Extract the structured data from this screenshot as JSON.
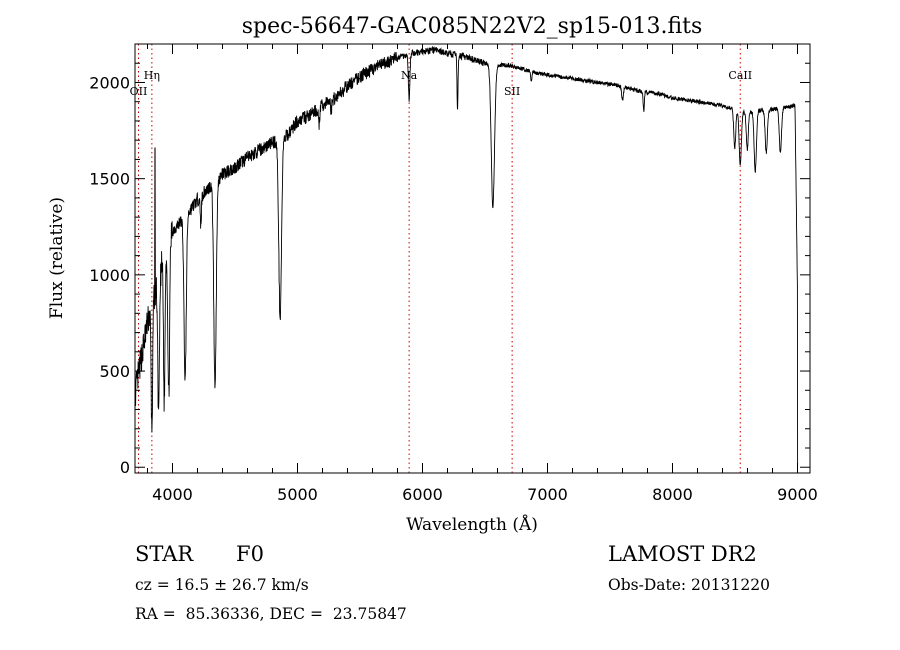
{
  "chart_data": {
    "type": "line",
    "title": "spec-56647-GAC085N22V2_sp15-013.fits",
    "xlabel": "Wavelength (Å)",
    "ylabel": "Flux (relative)",
    "xlim": [
      3700,
      9100
    ],
    "ylim": [
      -30,
      2200
    ],
    "x_ticks": [
      4000,
      5000,
      6000,
      7000,
      8000,
      9000
    ],
    "x_tick_labels": [
      "4000",
      "5000",
      "6000",
      "7000",
      "8000",
      "9000"
    ],
    "y_ticks": [
      0,
      500,
      1000,
      1500,
      2000
    ],
    "y_tick_labels": [
      "0",
      "500",
      "1000",
      "1500",
      "2000"
    ],
    "grid": false,
    "line_color": "#000000",
    "marker_color": "#cc0000",
    "continuum": [
      [
        3700,
        380
      ],
      [
        3800,
        750
      ],
      [
        3900,
        1020
      ],
      [
        4000,
        1230
      ],
      [
        4100,
        1300
      ],
      [
        4200,
        1390
      ],
      [
        4300,
        1460
      ],
      [
        4400,
        1520
      ],
      [
        4500,
        1560
      ],
      [
        4600,
        1610
      ],
      [
        4700,
        1650
      ],
      [
        4800,
        1690
      ],
      [
        4900,
        1710
      ],
      [
        5000,
        1800
      ],
      [
        5100,
        1830
      ],
      [
        5200,
        1880
      ],
      [
        5300,
        1920
      ],
      [
        5400,
        1980
      ],
      [
        5500,
        2030
      ],
      [
        5600,
        2070
      ],
      [
        5700,
        2100
      ],
      [
        5800,
        2130
      ],
      [
        5900,
        2150
      ],
      [
        6000,
        2160
      ],
      [
        6100,
        2170
      ],
      [
        6200,
        2150
      ],
      [
        6300,
        2140
      ],
      [
        6400,
        2120
      ],
      [
        6500,
        2100
      ],
      [
        6600,
        2090
      ],
      [
        6700,
        2090
      ],
      [
        6800,
        2070
      ],
      [
        6900,
        2050
      ],
      [
        7000,
        2040
      ],
      [
        7100,
        2030
      ],
      [
        7200,
        2020
      ],
      [
        7300,
        2010
      ],
      [
        7400,
        2000
      ],
      [
        7500,
        1990
      ],
      [
        7600,
        1980
      ],
      [
        7700,
        1960
      ],
      [
        7800,
        1950
      ],
      [
        7900,
        1940
      ],
      [
        8000,
        1920
      ],
      [
        8100,
        1910
      ],
      [
        8200,
        1900
      ],
      [
        8300,
        1890
      ],
      [
        8400,
        1880
      ],
      [
        8500,
        1860
      ],
      [
        8600,
        1850
      ],
      [
        8700,
        1855
      ],
      [
        8800,
        1860
      ],
      [
        8900,
        1870
      ],
      [
        8980,
        1880
      ],
      [
        9000,
        900
      ]
    ],
    "absorption_lines": [
      {
        "wavelength": 3835,
        "depth": 650,
        "width": 6
      },
      {
        "wavelength": 3889,
        "depth": 700,
        "width": 7
      },
      {
        "wavelength": 3934,
        "depth": 750,
        "width": 6
      },
      {
        "wavelength": 3970,
        "depth": 800,
        "width": 7
      },
      {
        "wavelength": 4101,
        "depth": 850,
        "width": 9
      },
      {
        "wavelength": 4226,
        "depth": 150,
        "width": 5
      },
      {
        "wavelength": 4340,
        "depth": 1050,
        "width": 10
      },
      {
        "wavelength": 4861,
        "depth": 920,
        "width": 11
      },
      {
        "wavelength": 5172,
        "depth": 90,
        "width": 5
      },
      {
        "wavelength": 5270,
        "depth": 60,
        "width": 4
      },
      {
        "wavelength": 5893,
        "depth": 240,
        "width": 6
      },
      {
        "wavelength": 6280,
        "depth": 280,
        "width": 4
      },
      {
        "wavelength": 6563,
        "depth": 740,
        "width": 13
      },
      {
        "wavelength": 6870,
        "depth": 40,
        "width": 6
      },
      {
        "wavelength": 7600,
        "depth": 70,
        "width": 7
      },
      {
        "wavelength": 7770,
        "depth": 100,
        "width": 5
      },
      {
        "wavelength": 8498,
        "depth": 200,
        "width": 8
      },
      {
        "wavelength": 8542,
        "depth": 290,
        "width": 9
      },
      {
        "wavelength": 8598,
        "depth": 200,
        "width": 8
      },
      {
        "wavelength": 8662,
        "depth": 320,
        "width": 9
      },
      {
        "wavelength": 8750,
        "depth": 220,
        "width": 9
      },
      {
        "wavelength": 8863,
        "depth": 230,
        "width": 9
      }
    ],
    "spikes": [
      {
        "wavelength": 3860,
        "height": 1660
      }
    ],
    "line_markers": [
      {
        "label": "OII",
        "wavelength": 3728,
        "label_position": "low"
      },
      {
        "label": "Hη",
        "wavelength": 3835,
        "label_position": "high"
      },
      {
        "label": "Na",
        "wavelength": 5893,
        "label_position": "high"
      },
      {
        "label": "SII",
        "wavelength": 6717,
        "label_position": "low"
      },
      {
        "label": "CaII",
        "wavelength": 8542,
        "label_position": "high"
      }
    ]
  },
  "info": {
    "object_class": "STAR",
    "subclass": "F0",
    "survey": "LAMOST DR2",
    "cz": "cz = 16.5 ± 26.7 km/s",
    "obs_date": "Obs-Date: 20131220",
    "coords": "RA =  85.36336, DEC =  23.75847"
  }
}
